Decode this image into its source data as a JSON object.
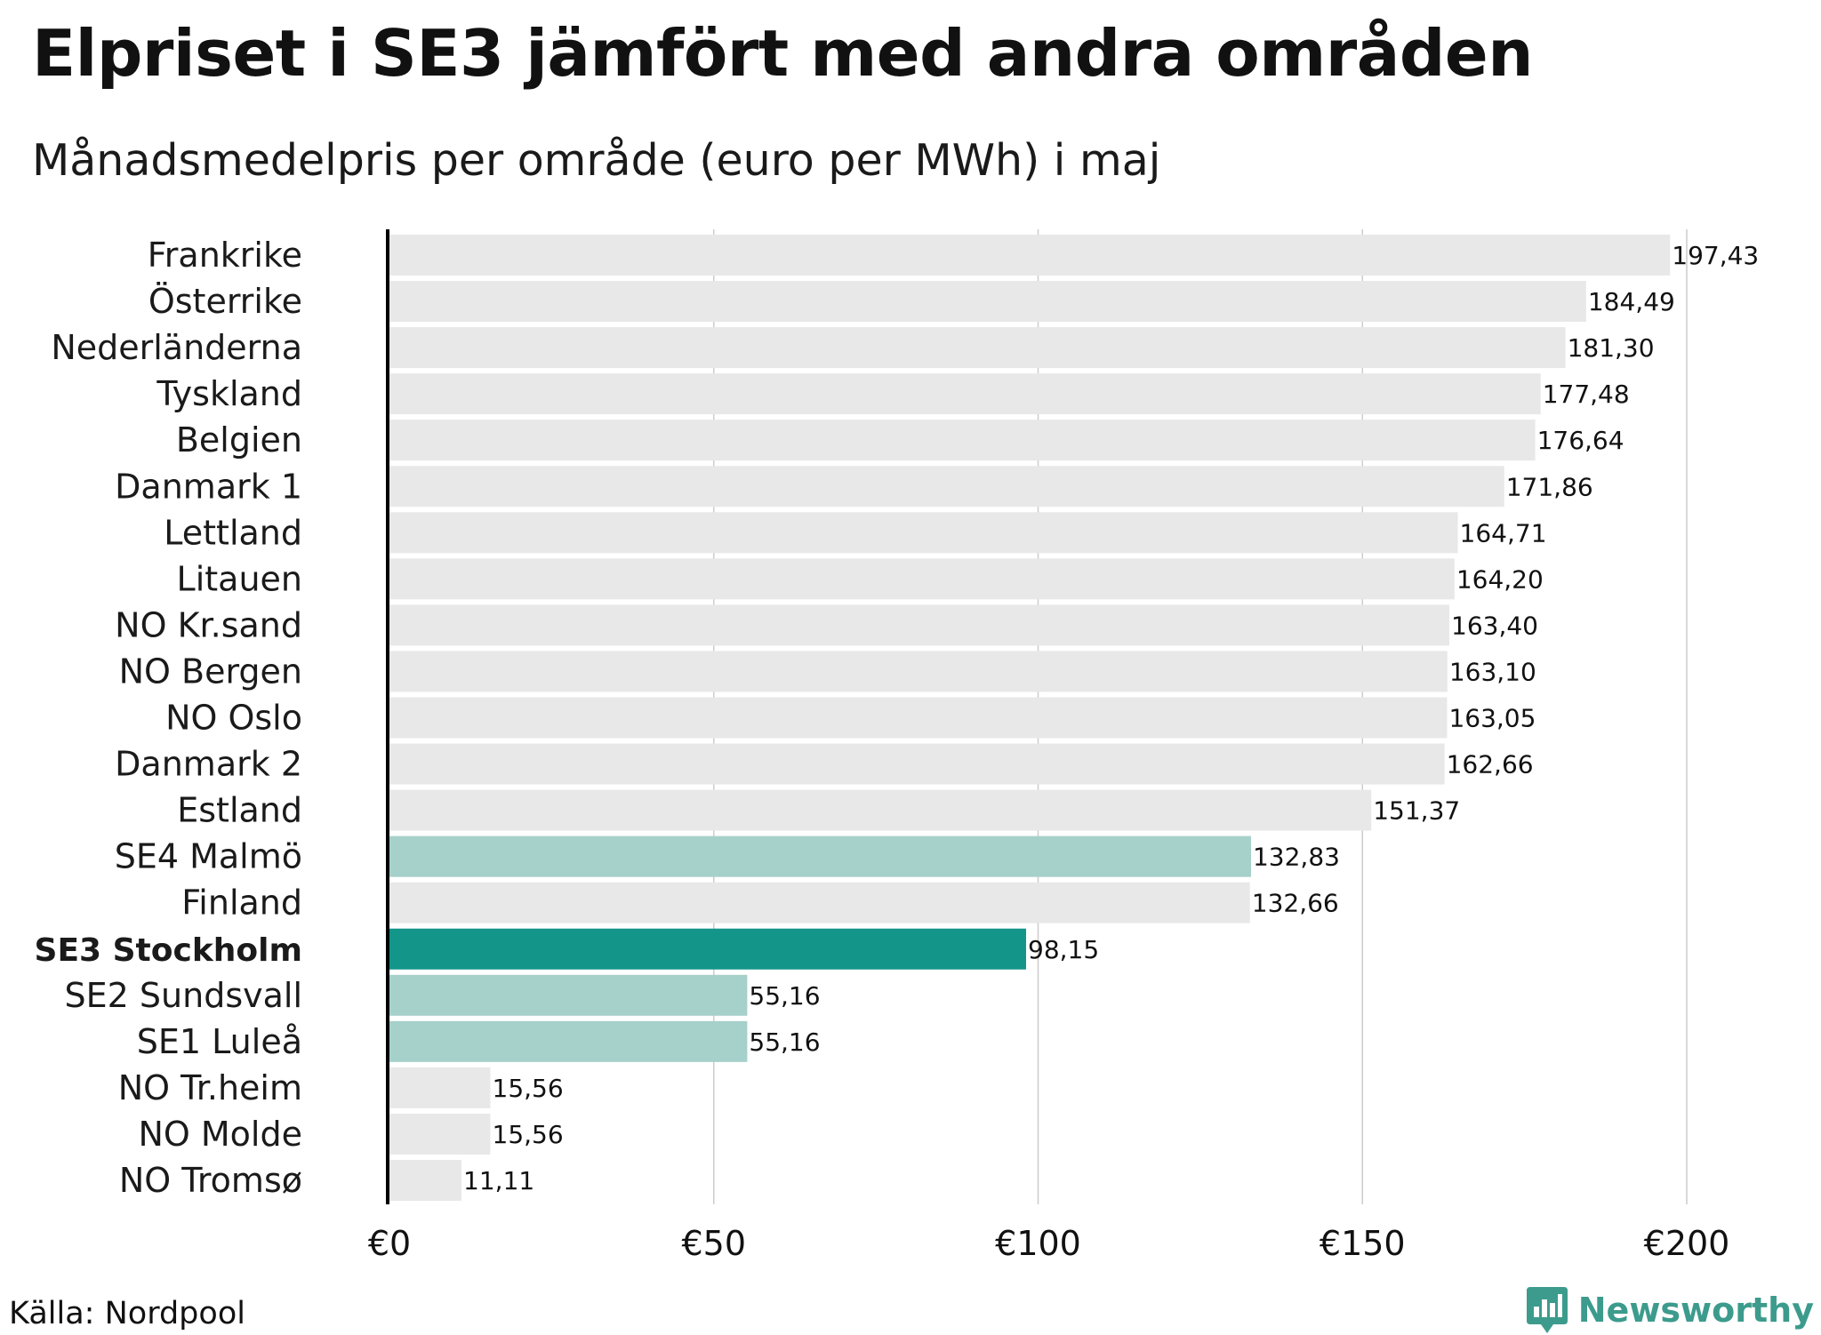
{
  "title": "Elpriset i SE3 jämfört med andra områden",
  "subtitle": "Månadsmedelpris per område (euro per MWh) i maj",
  "source": "Källa: Nordpool",
  "brand": "Newsworthy",
  "colors": {
    "default_bar": "#e8e8e8",
    "se_bar": "#a6d0ca",
    "highlight_bar": "#14958a",
    "gridline": "#cccccc",
    "axis": "#000000",
    "brand": "#3c9b8c"
  },
  "chart_data": {
    "type": "bar",
    "orientation": "horizontal",
    "title": "Elpriset i SE3 jämfört med andra områden",
    "subtitle": "Månadsmedelpris per område (euro per MWh) i maj",
    "xlabel": "",
    "ylabel": "",
    "xlim": [
      0,
      200
    ],
    "x_ticks": [
      0,
      50,
      100,
      150,
      200
    ],
    "x_tick_labels": [
      "€0",
      "€50",
      "€100",
      "€150",
      "€200"
    ],
    "grid": true,
    "categories": [
      "Frankrike",
      "Österrike",
      "Nederländerna",
      "Tyskland",
      "Belgien",
      "Danmark 1",
      "Lettland",
      "Litauen",
      "NO Kr.sand",
      "NO Bergen",
      "NO Oslo",
      "Danmark 2",
      "Estland",
      "SE4 Malmö",
      "Finland",
      "SE3 Stockholm",
      "SE2 Sundsvall",
      "SE1 Luleå",
      "NO Tr.heim",
      "NO Molde",
      "NO Tromsø"
    ],
    "values": [
      197.43,
      184.49,
      181.3,
      177.48,
      176.64,
      171.86,
      164.71,
      164.2,
      163.4,
      163.1,
      163.05,
      162.66,
      151.37,
      132.83,
      132.66,
      98.15,
      55.16,
      55.16,
      15.56,
      15.56,
      11.11
    ],
    "value_labels": [
      "197,43",
      "184,49",
      "181,30",
      "177,48",
      "176,64",
      "171,86",
      "164,71",
      "164,20",
      "163,40",
      "163,10",
      "163,05",
      "162,66",
      "151,37",
      "132,83",
      "132,66",
      "98,15",
      "55,16",
      "55,16",
      "15,56",
      "15,56",
      "11,11"
    ],
    "bar_style": [
      "default",
      "default",
      "default",
      "default",
      "default",
      "default",
      "default",
      "default",
      "default",
      "default",
      "default",
      "default",
      "default",
      "se",
      "default",
      "highlight",
      "se",
      "se",
      "default",
      "default",
      "default"
    ]
  }
}
